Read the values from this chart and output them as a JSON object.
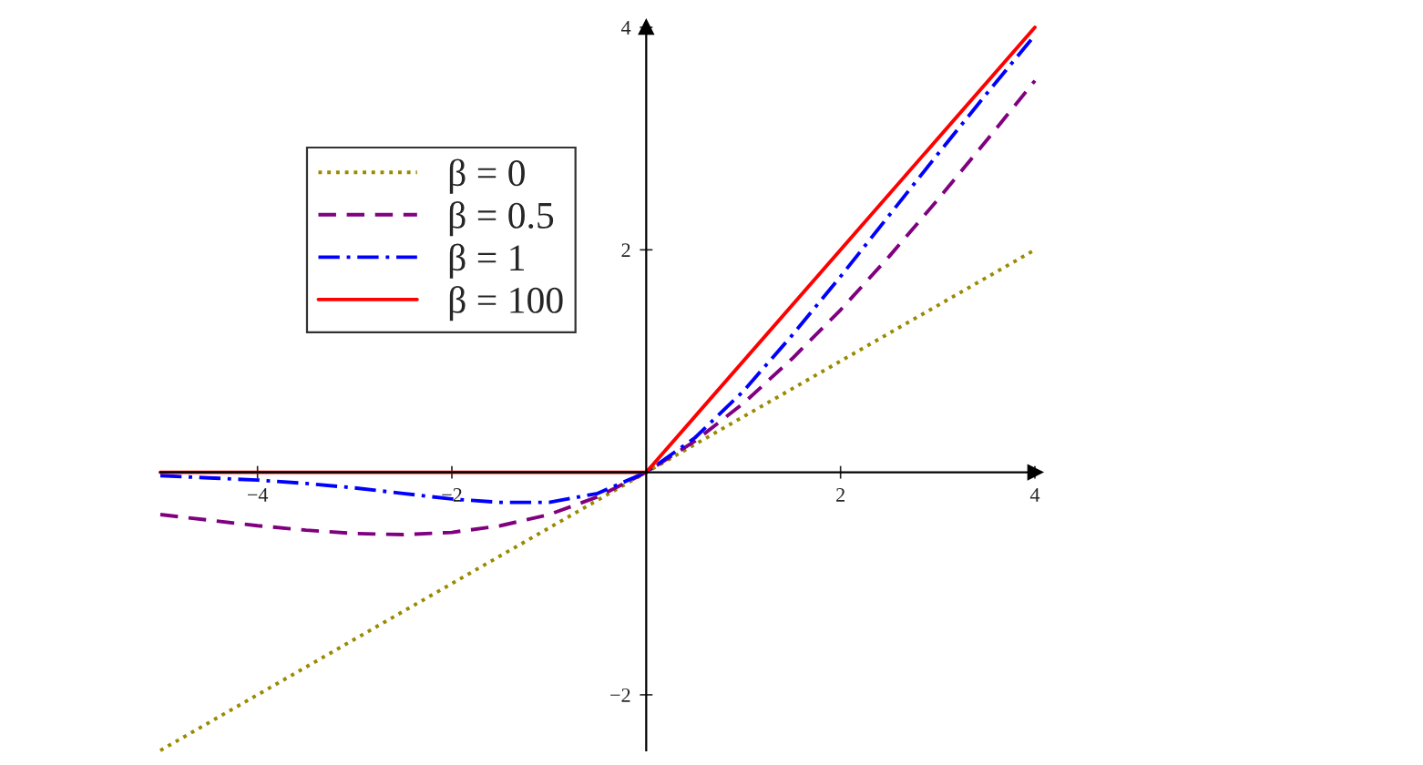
{
  "chart_data": {
    "type": "line",
    "xlim": [
      -5,
      4
    ],
    "ylim": [
      -2.5,
      4
    ],
    "xticks": [
      {
        "value": -4,
        "label": "−4"
      },
      {
        "value": -2,
        "label": "−2"
      },
      2,
      4
    ],
    "yticks": [
      {
        "value": -2,
        "label": "−2"
      },
      2,
      4
    ],
    "grid": false,
    "legend": "top left",
    "marker": "none",
    "series": [
      {
        "name": "β = 0",
        "color": "#9a8a00",
        "line_style": "dotted",
        "x": [
          -5,
          4
        ],
        "values": [
          -2.5,
          2
        ]
      },
      {
        "name": "β = 0.5",
        "color": "#800080",
        "line_style": "dashed",
        "x": [
          -5,
          -4.5,
          -4,
          -3.5,
          -3,
          -2.5,
          -2,
          -1.5,
          -1,
          -0.5,
          0,
          0.5,
          1,
          1.5,
          2,
          2.5,
          3,
          3.5,
          4
        ],
        "values": [
          -0.38,
          -0.43,
          -0.48,
          -0.52,
          -0.55,
          -0.56,
          -0.54,
          -0.48,
          -0.38,
          -0.22,
          0,
          0.28,
          0.62,
          1.02,
          1.46,
          1.94,
          2.45,
          2.98,
          3.52
        ]
      },
      {
        "name": "β = 1",
        "color": "#0000ff",
        "line_style": "dashdot",
        "x": [
          -5,
          -4.5,
          -4,
          -3.5,
          -3,
          -2.5,
          -2,
          -1.5,
          -1,
          -0.5,
          0,
          0.5,
          1,
          1.5,
          2,
          2.5,
          3,
          3.5,
          4
        ],
        "values": [
          -0.03,
          -0.05,
          -0.07,
          -0.1,
          -0.14,
          -0.19,
          -0.24,
          -0.27,
          -0.27,
          -0.19,
          0,
          0.31,
          0.73,
          1.23,
          1.76,
          2.31,
          2.86,
          3.4,
          3.93
        ]
      },
      {
        "name": "β = 100",
        "color": "#ff0000",
        "line_style": "solid",
        "x": [
          -5,
          0,
          4
        ],
        "values": [
          0,
          0,
          4
        ]
      }
    ]
  }
}
